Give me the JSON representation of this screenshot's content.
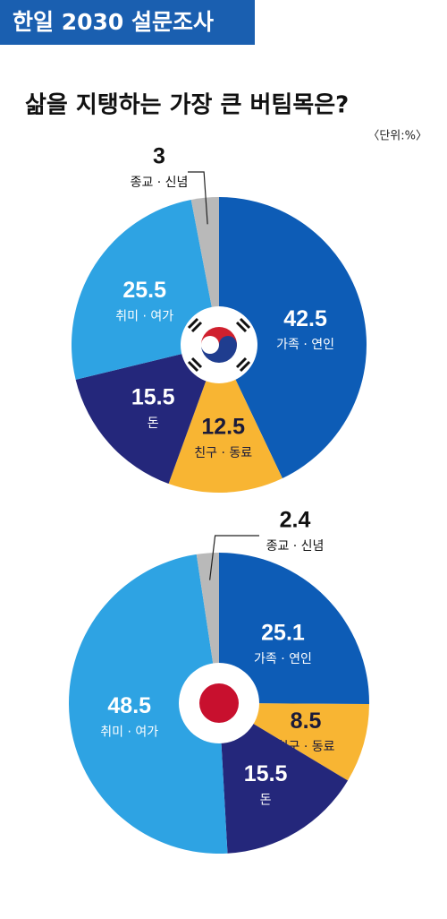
{
  "header": "한일 2030 설문조사",
  "title": "삶을 지탱하는 가장 큰 버팀목은?",
  "unit": "〈단위:%〉",
  "chart_data": [
    {
      "type": "pie",
      "categories": [
        "가족 · 연인",
        "친구 · 동료",
        "돈",
        "취미 · 여가",
        "종교 · 신념"
      ],
      "values": [
        42.5,
        12.5,
        15.5,
        25.5,
        3
      ],
      "colors": [
        "#0d5cb6",
        "#f8b533",
        "#24277b",
        "#2ea3e3",
        "#b9b9b9"
      ]
    },
    {
      "type": "pie",
      "categories": [
        "가족 · 연인",
        "친구 · 동료",
        "돈",
        "취미 · 여가",
        "종교 · 신념"
      ],
      "values": [
        25.1,
        8.5,
        15.5,
        48.5,
        2.4
      ],
      "colors": [
        "#0d5cb6",
        "#f8b533",
        "#24277b",
        "#2ea3e3",
        "#b9b9b9"
      ]
    }
  ]
}
